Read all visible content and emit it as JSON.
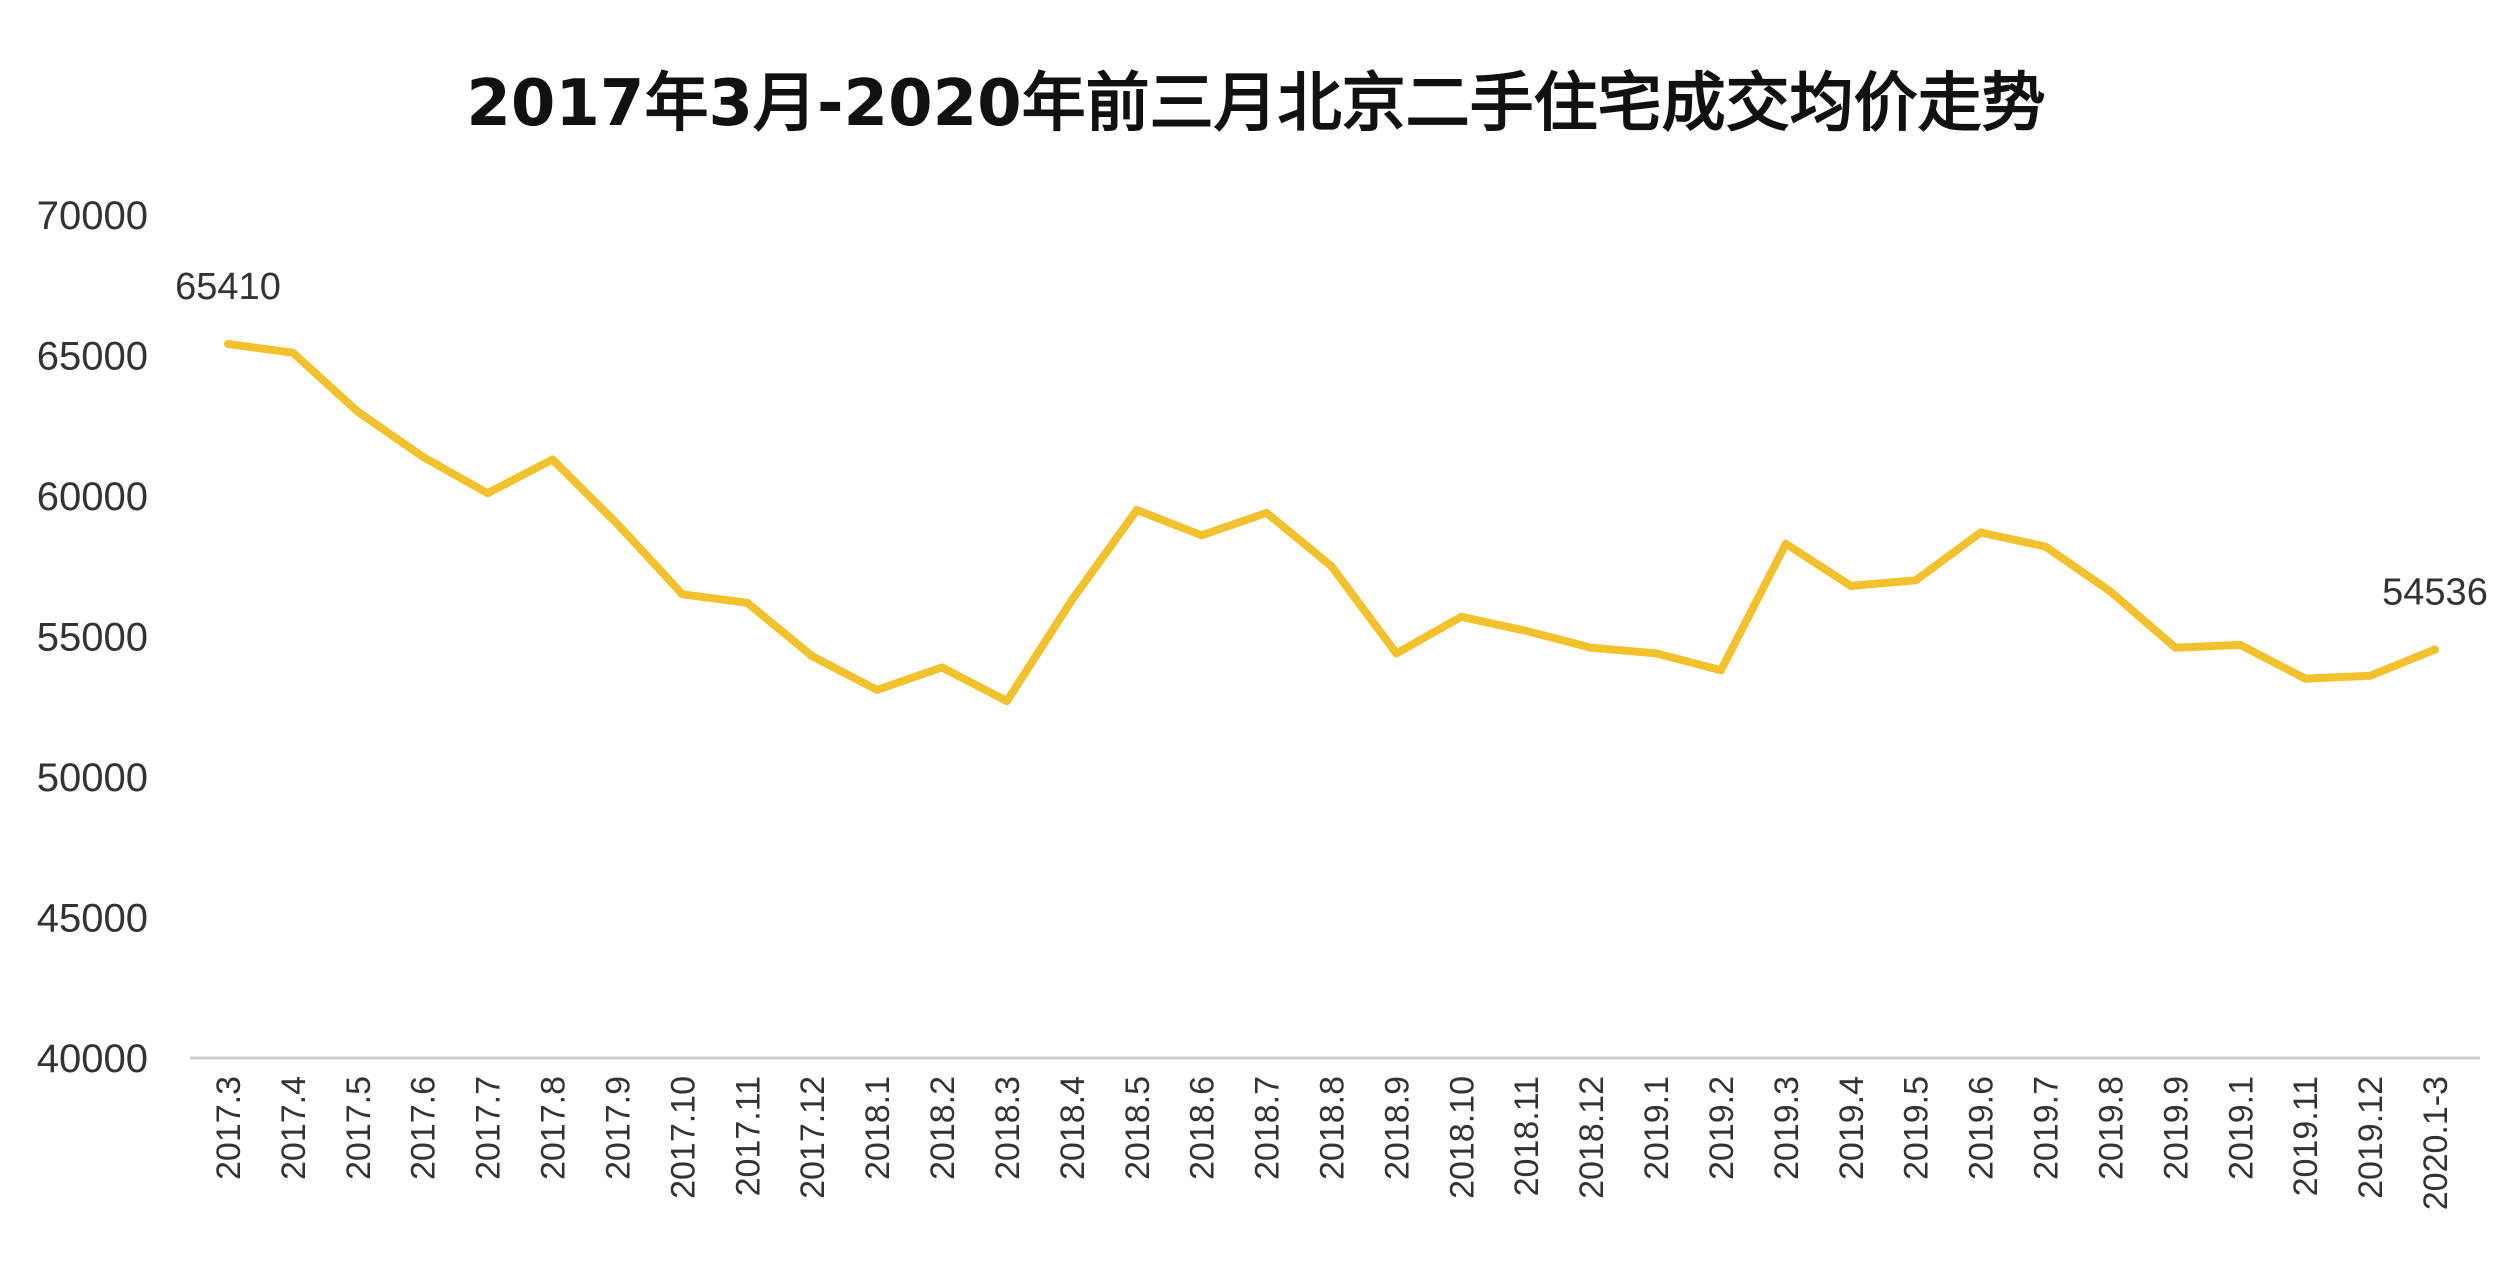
{
  "chart_data": {
    "type": "line",
    "title": "2017年3月-2020年前三月北京二手住宅成交均价走势",
    "xlabel": "",
    "ylabel": "",
    "categories": [
      "2017.3",
      "2017.4",
      "2017.5",
      "2017.6",
      "2017.7",
      "2017.8",
      "2017.9",
      "2017.10",
      "2017.11",
      "2017.12",
      "2018.1",
      "2018.2",
      "2018.3",
      "2018.4",
      "2018.5",
      "2018.6",
      "2018.7",
      "2018.8",
      "2018.9",
      "2018.10",
      "2018.11",
      "2018.12",
      "2019.1",
      "2019.2",
      "2019.3",
      "2019.4",
      "2019.5",
      "2019.6",
      "2019.7",
      "2019.8",
      "2019.9",
      "2019.1",
      "2019.11",
      "2019.12",
      "2020.1-3"
    ],
    "series": [
      {
        "values": [
          65410,
          65100,
          63000,
          61400,
          60100,
          61300,
          59000,
          56500,
          56200,
          54300,
          53100,
          53900,
          52700,
          56300,
          59500,
          58600,
          59400,
          57500,
          54400,
          55700,
          55200,
          54600,
          54400,
          53800,
          58300,
          56800,
          57000,
          58700,
          58200,
          56600,
          54600,
          54700,
          53500,
          53600,
          54536
        ],
        "color": "#F2C12E"
      }
    ],
    "data_labels": [
      {
        "index": 0,
        "text": "65410"
      },
      {
        "index": 34,
        "text": "54536"
      }
    ],
    "ylim": [
      40000,
      70000
    ],
    "yticks": [
      "40000",
      "45000",
      "50000",
      "55000",
      "60000",
      "65000",
      "70000"
    ],
    "grid": false,
    "legend": "none"
  }
}
